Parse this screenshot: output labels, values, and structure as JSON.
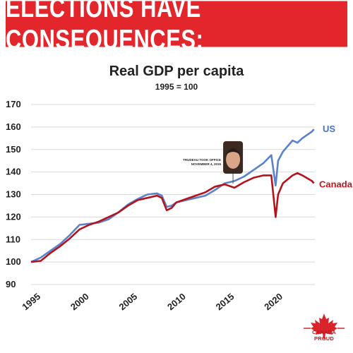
{
  "banner": {
    "text": "ELECTIONS HAVE CONSEQUENCES:"
  },
  "annotation": {
    "line1": "TRUDEAU TOOK OFFICE",
    "line2": "NOVEMBER 4, 2015",
    "x": 2015.85
  },
  "brand": {
    "text": "CANADA PROUD"
  },
  "colors": {
    "banner": "#e3262b",
    "us": "#5a82cc",
    "canada": "#b5121b"
  },
  "icons": {
    "brand": "maple-leaf-icon",
    "photo": "portrait-icon"
  },
  "chart_data": {
    "type": "line",
    "title": "Real GDP per capita",
    "subtitle": "1995 = 100",
    "xlabel": "",
    "ylabel": "",
    "xlim": [
      1995,
      2024.3
    ],
    "ylim": [
      90,
      170
    ],
    "y_ticks": [
      90,
      100,
      110,
      120,
      130,
      140,
      150,
      160,
      170
    ],
    "x_ticks": [
      1995,
      2000,
      2005,
      2010,
      2015,
      2020
    ],
    "grid": "horizontal",
    "series": [
      {
        "name": "US",
        "x": [
          1995,
          1996,
          1997,
          1998,
          1999,
          2000,
          2001,
          2002,
          2003,
          2004,
          2005,
          2006,
          2007,
          2008,
          2008.5,
          2009,
          2009.5,
          2010,
          2011,
          2012,
          2013,
          2014,
          2015,
          2016,
          2017,
          2018,
          2019,
          2019.8,
          2020.25,
          2020.5,
          2021,
          2022,
          2022.5,
          2023,
          2024,
          2024.2
        ],
        "values": [
          100,
          102,
          105,
          108,
          112,
          116.5,
          117,
          117.5,
          119,
          122,
          125.5,
          128,
          130,
          130.5,
          129.5,
          124.5,
          125,
          126.5,
          127.5,
          128.5,
          129.5,
          132,
          135,
          136,
          138,
          141,
          144,
          147.5,
          134,
          145,
          149,
          154,
          153,
          155,
          158,
          159
        ]
      },
      {
        "name": "Canada",
        "x": [
          1995,
          1996,
          1997,
          1998,
          1999,
          2000,
          2001,
          2002,
          2003,
          2004,
          2005,
          2006,
          2007,
          2008,
          2008.5,
          2009,
          2009.5,
          2010,
          2011,
          2012,
          2013,
          2014,
          2015,
          2016,
          2017,
          2018,
          2019,
          2019.8,
          2020.25,
          2020.5,
          2021,
          2022,
          2022.5,
          2023,
          2024,
          2024.2
        ],
        "values": [
          100,
          100.5,
          104,
          107,
          110.5,
          114.5,
          116.5,
          118,
          120,
          122,
          125,
          127.5,
          128.5,
          129.5,
          128.5,
          123,
          124,
          126.5,
          128,
          129.5,
          131,
          133.5,
          134.5,
          133,
          135.5,
          137.5,
          138.5,
          138.5,
          120,
          130,
          135,
          138.5,
          139.5,
          138.5,
          136,
          135
        ]
      }
    ]
  }
}
